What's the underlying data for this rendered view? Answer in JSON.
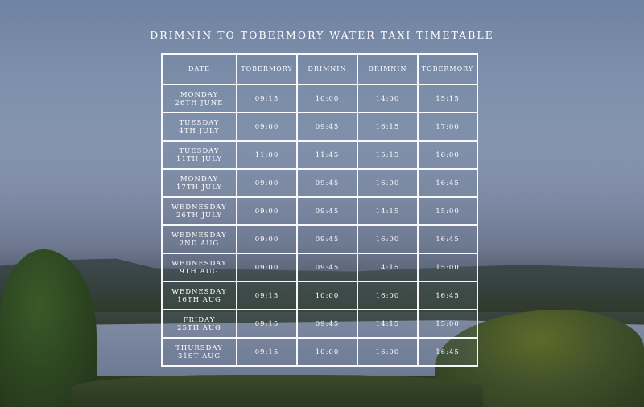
{
  "title": "DRIMNIN TO TOBERMORY WATER TAXI TIMETABLE",
  "headers": [
    "DATE",
    "TOBERMORY",
    "DRIMNIN",
    "DRIMNIN",
    "TOBERMORY"
  ],
  "rows": [
    {
      "day": "MONDAY",
      "date": "26TH JUNE",
      "t1": "09:15",
      "t2": "10:00",
      "t3": "14:00",
      "t4": "15:15"
    },
    {
      "day": "TUESDAY",
      "date": "4TH JULY",
      "t1": "09:00",
      "t2": "09:45",
      "t3": "16:15",
      "t4": "17:00"
    },
    {
      "day": "TUESDAY",
      "date": "11TH JULY",
      "t1": "11:00",
      "t2": "11:45",
      "t3": "15:15",
      "t4": "16:00"
    },
    {
      "day": "MONDAY",
      "date": "17TH JULY",
      "t1": "09:00",
      "t2": "09:45",
      "t3": "16:00",
      "t4": "16:45"
    },
    {
      "day": "WEDNESDAY",
      "date": "26TH JULY",
      "t1": "09:00",
      "t2": "09:45",
      "t3": "14:15",
      "t4": "15:00"
    },
    {
      "day": "WEDNESDAY",
      "date": "2ND AUG",
      "t1": "09:00",
      "t2": "09:45",
      "t3": "16:00",
      "t4": "16:45"
    },
    {
      "day": "WEDNESDAY",
      "date": "9TH AUG",
      "t1": "09:00",
      "t2": "09:45",
      "t3": "14:15",
      "t4": "15:00"
    },
    {
      "day": "WEDNESDAY",
      "date": "16TH AUG",
      "t1": "09:15",
      "t2": "10:00",
      "t3": "16:00",
      "t4": "16:45"
    },
    {
      "day": "FRIDAY",
      "date": "25TH AUG",
      "t1": "09:15",
      "t2": "09:45",
      "t3": "14:15",
      "t4": "15:00"
    },
    {
      "day": "THURSDAY",
      "date": "31ST AUG",
      "t1": "09:15",
      "t2": "10:00",
      "t3": "16:00",
      "t4": "16:45"
    }
  ]
}
